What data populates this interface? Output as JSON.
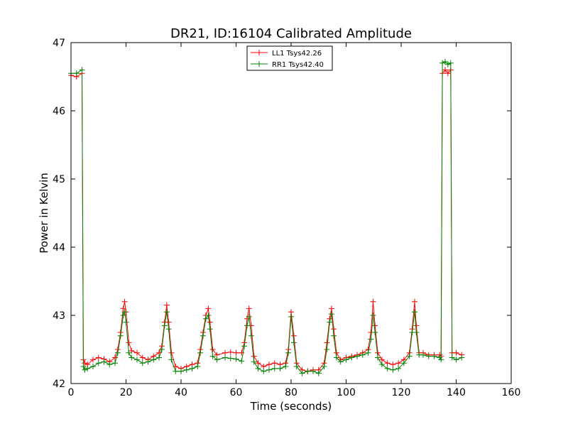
{
  "chart_data": {
    "type": "line",
    "title": "DR21, ID:16104 Calibrated Amplitude",
    "xlabel": "Time (seconds)",
    "ylabel": "Power in Kelvin",
    "xlim": [
      0,
      160
    ],
    "ylim": [
      42,
      47
    ],
    "xticks": [
      "0",
      "20",
      "40",
      "60",
      "80",
      "100",
      "120",
      "140",
      "160"
    ],
    "yticks": [
      "42",
      "43",
      "44",
      "45",
      "46",
      "47"
    ],
    "grid": false,
    "legend_position": "top-center",
    "peak_times": [
      19.5,
      34.8,
      49.9,
      64.7,
      80.0,
      94.7,
      109.8,
      124.9
    ],
    "series": [
      {
        "name": "LL1 Tsys42.26",
        "color": "#ff0000",
        "marker": "+",
        "x": [
          0,
          2,
          4,
          4.5,
          5,
          6,
          8,
          10,
          12,
          14,
          16,
          17,
          18,
          19,
          19.5,
          20,
          21,
          22,
          24,
          26,
          28,
          30,
          32,
          33,
          34,
          34.8,
          35.5,
          36.5,
          38,
          40,
          42,
          44,
          46,
          47,
          48,
          49,
          49.9,
          50.5,
          51.5,
          53,
          56,
          58,
          60,
          62,
          63,
          64,
          64.7,
          65.5,
          66.5,
          68,
          70,
          72,
          74,
          76,
          78,
          79,
          80,
          81,
          82,
          84,
          86,
          88,
          90,
          92,
          93,
          94,
          94.7,
          95.5,
          96.5,
          98,
          100,
          102,
          104,
          106,
          108,
          109,
          109.8,
          110.5,
          111.5,
          113,
          115,
          117,
          119,
          121,
          123,
          124,
          124.9,
          125.5,
          126.5,
          128,
          130,
          132,
          134,
          134.5,
          135,
          136,
          137,
          138,
          138.5,
          140,
          142
        ],
        "y": [
          46.52,
          46.5,
          46.55,
          42.35,
          42.3,
          42.28,
          42.35,
          42.38,
          42.36,
          42.32,
          42.38,
          42.5,
          42.75,
          43.1,
          43.2,
          43.05,
          42.6,
          42.48,
          42.45,
          42.38,
          42.35,
          42.4,
          42.45,
          42.55,
          42.9,
          43.15,
          42.9,
          42.45,
          42.25,
          42.22,
          42.25,
          42.28,
          42.3,
          42.5,
          42.75,
          43.0,
          43.1,
          42.9,
          42.5,
          42.42,
          42.45,
          42.46,
          42.45,
          42.45,
          42.6,
          42.95,
          43.1,
          42.85,
          42.4,
          42.3,
          42.25,
          42.28,
          42.3,
          42.28,
          42.3,
          42.5,
          43.05,
          42.7,
          42.3,
          42.2,
          42.18,
          42.2,
          42.2,
          42.3,
          42.6,
          42.95,
          43.1,
          42.8,
          42.45,
          42.35,
          42.38,
          42.4,
          42.42,
          42.45,
          42.5,
          42.75,
          43.2,
          42.85,
          42.45,
          42.35,
          42.3,
          42.28,
          42.3,
          42.35,
          42.45,
          42.8,
          43.2,
          42.85,
          42.45,
          42.45,
          42.42,
          42.42,
          42.42,
          42.4,
          46.55,
          46.6,
          46.55,
          46.6,
          42.45,
          42.45,
          42.42
        ]
      },
      {
        "name": "RR1 Tsys42.40",
        "color": "#008000",
        "marker": "+",
        "x": [
          0,
          2,
          4,
          4.5,
          5,
          6,
          8,
          10,
          12,
          14,
          16,
          17,
          18,
          19,
          19.5,
          20,
          21,
          22,
          24,
          26,
          28,
          30,
          32,
          33,
          34,
          34.8,
          35.5,
          36.5,
          38,
          40,
          42,
          44,
          46,
          47,
          48,
          49,
          49.9,
          50.5,
          51.5,
          53,
          56,
          58,
          60,
          62,
          63,
          64,
          64.7,
          65.5,
          66.5,
          68,
          70,
          72,
          74,
          76,
          78,
          79,
          80,
          81,
          82,
          84,
          86,
          88,
          90,
          92,
          93,
          94,
          94.7,
          95.5,
          96.5,
          98,
          100,
          102,
          104,
          106,
          108,
          109,
          109.8,
          110.5,
          111.5,
          113,
          115,
          117,
          119,
          121,
          123,
          124,
          124.9,
          125.5,
          126.5,
          128,
          130,
          132,
          134,
          134.5,
          135,
          136,
          137,
          138,
          138.5,
          140,
          142
        ],
        "y": [
          46.55,
          46.55,
          46.6,
          42.25,
          42.2,
          42.22,
          42.25,
          42.3,
          42.32,
          42.28,
          42.3,
          42.45,
          42.7,
          43.0,
          43.05,
          42.9,
          42.45,
          42.38,
          42.35,
          42.3,
          42.32,
          42.35,
          42.38,
          42.5,
          42.85,
          43.05,
          42.8,
          42.35,
          42.18,
          42.18,
          42.2,
          42.22,
          42.25,
          42.45,
          42.7,
          42.95,
          43.0,
          42.8,
          42.4,
          42.35,
          42.38,
          42.37,
          42.36,
          42.33,
          42.55,
          42.85,
          42.98,
          42.7,
          42.32,
          42.22,
          42.18,
          42.2,
          42.22,
          42.22,
          42.25,
          42.45,
          42.98,
          42.6,
          42.25,
          42.15,
          42.18,
          42.18,
          42.15,
          42.25,
          42.5,
          42.9,
          43.02,
          42.7,
          42.38,
          42.32,
          42.35,
          42.38,
          42.4,
          42.42,
          42.45,
          42.65,
          43.0,
          42.75,
          42.38,
          42.28,
          42.22,
          42.2,
          42.22,
          42.3,
          42.4,
          42.75,
          43.05,
          42.75,
          42.42,
          42.42,
          42.4,
          42.4,
          42.38,
          42.35,
          46.7,
          46.72,
          46.68,
          46.7,
          42.38,
          42.35,
          42.38
        ]
      }
    ]
  }
}
